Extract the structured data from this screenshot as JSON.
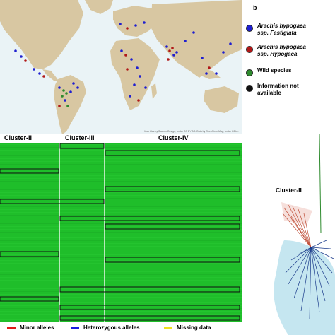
{
  "map": {
    "credit": "Map tiles by Stamen Design, under CC BY 3.0. Data by OpenStreetMap, under ODbL."
  },
  "legend": {
    "panel_letter": "b",
    "items": [
      {
        "line1": "Arachis hypogaea",
        "line2": "ssp. Fastigiata",
        "italic": true,
        "color": "#1f1fd0"
      },
      {
        "line1": "Arachis hypogaea",
        "line2": "ssp. Hypogaea",
        "italic": true,
        "color": "#b01818"
      },
      {
        "line1": "Wild species",
        "line2": "",
        "italic": false,
        "color": "#2e8b2e"
      },
      {
        "line1": "Information not",
        "line2": "available",
        "italic": false,
        "color": "#111111"
      }
    ]
  },
  "clusters": {
    "c2": "Cluster-II",
    "c3": "Cluster-III",
    "c4": "Cluster-IV"
  },
  "tree": {
    "cluster_label": "Cluster-II"
  },
  "allele_legend": {
    "minor": {
      "label": "Minor alleles",
      "color": "#e01818"
    },
    "het": {
      "label": "Heterozygous alleles",
      "color": "#1a1ae0"
    },
    "missing": {
      "label": "Missing data",
      "color": "#f0e020"
    }
  },
  "colors": {
    "ocean": "#eaf3f6",
    "land": "#d8c7a2",
    "heatmap_green": "#1fbe2a",
    "heatmap_separator": "#e8f5e8",
    "tree_blue": "#bfe3ee"
  }
}
